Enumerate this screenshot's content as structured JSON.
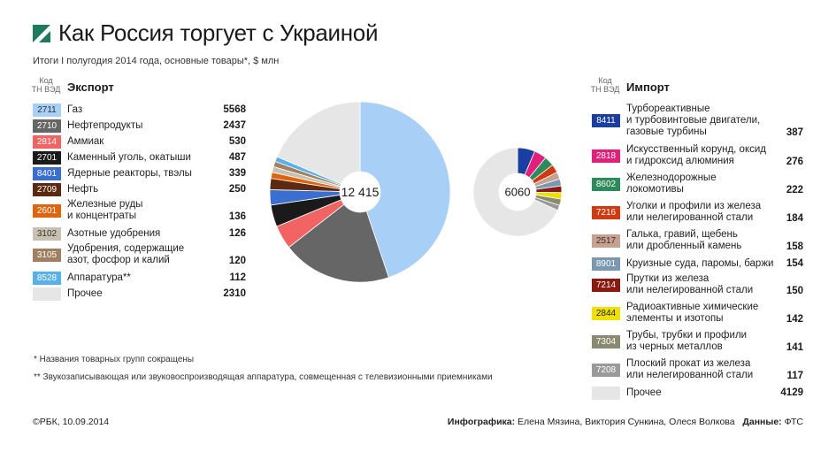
{
  "title": "Как Россия торгует с Украиной",
  "subtitle": "Итоги I полугодия 2014 года, основные товары*, $ млн",
  "code_header": [
    "Код",
    "ТН ВЭД"
  ],
  "colors": {
    "2711": "#a8cff5",
    "2710": "#666666",
    "2814": "#f26464",
    "2701": "#1a1a1a",
    "8401": "#3a6fd0",
    "2709": "#5c2a10",
    "2601": "#e0640f",
    "3102": "#c8c0b0",
    "3105": "#a08060",
    "8528": "#5ab0e8",
    "other": "#e6e6e6",
    "8411": "#1a3fa0",
    "2818": "#e0207a",
    "8602": "#2d8a5a",
    "7216": "#d03a10",
    "2517": "#c8a090",
    "8901": "#7a98b0",
    "7214": "#8a1a10",
    "2844": "#f0e000",
    "7304": "#8a8a70",
    "7208": "#9a9a9a"
  },
  "chart_data": [
    {
      "type": "pie",
      "title": "Экспорт",
      "total_label": "12 415",
      "codes": [
        "2711",
        "2710",
        "2814",
        "2701",
        "8401",
        "2709",
        "2601",
        "3102",
        "3105",
        "8528",
        ""
      ],
      "labels": [
        "Газ",
        "Нефтепродукты",
        "Аммиак",
        "Каменный уголь, окатыши",
        "Ядерные реакторы, твэлы",
        "Нефть",
        "Железные руды и концентраты",
        "Азотные удобрения",
        "Удобрения, содержащие азот, фосфор и калий",
        "Аппаратура**",
        "Прочее"
      ],
      "values": [
        5568,
        2437,
        530,
        487,
        339,
        250,
        136,
        126,
        120,
        112,
        2310
      ],
      "value_labels": [
        "5568",
        "2437",
        "530",
        "487",
        "339",
        "250",
        "136",
        "126",
        "120",
        "112",
        "2310"
      ],
      "color_keys": [
        "2711",
        "2710",
        "2814",
        "2701",
        "8401",
        "2709",
        "2601",
        "3102",
        "3105",
        "8528",
        "other"
      ]
    },
    {
      "type": "pie",
      "title": "Импорт",
      "total_label": "6060",
      "codes": [
        "8411",
        "2818",
        "8602",
        "7216",
        "2517",
        "8901",
        "7214",
        "2844",
        "7304",
        "7208",
        ""
      ],
      "labels": [
        "Турбореактивные и турбовинтовые двигатели, газовые турбины",
        "Искусственный корунд, оксид и гидроксид алюминия",
        "Железнодорожные локомотивы",
        "Уголки и профили из железа или нелегированной стали",
        "Галька, гравий, щебень или дробленный камень",
        "Круизные суда, паромы, баржи",
        "Прутки из железа или нелегированной стали",
        "Радиоактивные химические элементы и изотопы",
        "Трубы, трубки и профили из черных металлов",
        "Плоский прокат из железа или нелегированной стали",
        "Прочее"
      ],
      "values": [
        387,
        276,
        222,
        184,
        158,
        154,
        150,
        142,
        141,
        117,
        4129
      ],
      "value_labels": [
        "387",
        "276",
        "222",
        "184",
        "158",
        "154",
        "150",
        "142",
        "141",
        "117",
        "4129"
      ],
      "color_keys": [
        "8411",
        "2818",
        "8602",
        "7216",
        "2517",
        "8901",
        "7214",
        "2844",
        "7304",
        "7208",
        "other"
      ]
    }
  ],
  "export_rows": [
    {
      "code": "2711",
      "label_lines": [
        "Газ"
      ],
      "value": "5568"
    },
    {
      "code": "2710",
      "label_lines": [
        "Нефтепродукты"
      ],
      "value": "2437"
    },
    {
      "code": "2814",
      "label_lines": [
        "Аммиак"
      ],
      "value": "530"
    },
    {
      "code": "2701",
      "label_lines": [
        "Каменный уголь, окатыши"
      ],
      "value": "487"
    },
    {
      "code": "8401",
      "label_lines": [
        "Ядерные реакторы, твэлы"
      ],
      "value": "339"
    },
    {
      "code": "2709",
      "label_lines": [
        "Нефть"
      ],
      "value": "250"
    },
    {
      "code": "2601",
      "label_lines": [
        "Железные руды",
        "и концентраты"
      ],
      "value": "136"
    },
    {
      "code": "3102",
      "label_lines": [
        "Азотные удобрения"
      ],
      "value": "126"
    },
    {
      "code": "3105",
      "label_lines": [
        "Удобрения, содержащие",
        "азот, фосфор и калий"
      ],
      "value": "120"
    },
    {
      "code": "8528",
      "label_lines": [
        "Аппаратура**"
      ],
      "value": "112"
    },
    {
      "code": "",
      "label_lines": [
        "Прочее"
      ],
      "value": "2310"
    }
  ],
  "import_rows": [
    {
      "code": "8411",
      "label_lines": [
        "Турбореактивные",
        "и турбовинтовые двигатели,",
        "газовые турбины"
      ],
      "value": "387"
    },
    {
      "code": "2818",
      "label_lines": [
        "Искусственный корунд, оксид",
        "и гидроксид алюминия"
      ],
      "value": "276"
    },
    {
      "code": "8602",
      "label_lines": [
        "Железнодорожные",
        "локомотивы"
      ],
      "value": "222"
    },
    {
      "code": "7216",
      "label_lines": [
        "Уголки и профили из железа",
        "или нелегированной стали"
      ],
      "value": "184"
    },
    {
      "code": "2517",
      "label_lines": [
        "Галька, гравий, щебень",
        "или дробленный камень"
      ],
      "value": "158"
    },
    {
      "code": "8901",
      "label_lines": [
        "Круизные суда, паромы, баржи"
      ],
      "value": "154"
    },
    {
      "code": "7214",
      "label_lines": [
        "Прутки из железа",
        "или нелегированной стали"
      ],
      "value": "150"
    },
    {
      "code": "2844",
      "label_lines": [
        "Радиоактивные химические",
        "элементы и изотопы"
      ],
      "value": "142"
    },
    {
      "code": "7304",
      "label_lines": [
        "Трубы, трубки и профили",
        "из черных металлов"
      ],
      "value": "141"
    },
    {
      "code": "7208",
      "label_lines": [
        "Плоский прокат из железа",
        "или нелегированной стали"
      ],
      "value": "117"
    },
    {
      "code": "",
      "label_lines": [
        "Прочее"
      ],
      "value": "4129"
    }
  ],
  "notes": [
    "*   Названия товарных групп сокращены",
    "** Звукозаписывающая или звуковоспроизводящая аппаратура, совмещенная с телевизионными приемниками"
  ],
  "footer": {
    "left": "©РБК, 10.09.2014",
    "credits_label": "Инфографика:",
    "credits": "Елена Мязина, Виктория Сункина, Олеся Волкова",
    "source_label": "Данные:",
    "source": "ФТС"
  }
}
